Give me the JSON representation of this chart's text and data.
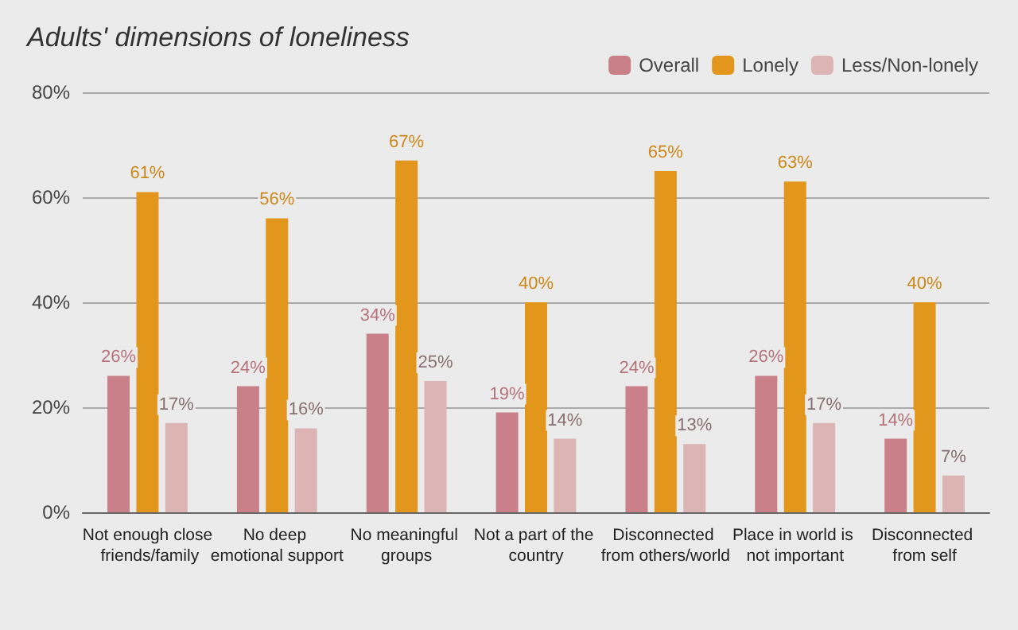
{
  "chart_data": {
    "type": "bar",
    "title": "Adults' dimensions of loneliness",
    "categories": [
      "Not enough close friends/family",
      "No deep emotional support",
      "No meaningful groups",
      "Not a part of the country",
      "Disconnected from others/world",
      "Place in world is not important",
      "Disconnected from self"
    ],
    "series": [
      {
        "name": "Overall",
        "color": "#c98088",
        "values": [
          26,
          24,
          34,
          19,
          24,
          26,
          14
        ],
        "value_labels": [
          "26%",
          "24%",
          "34%",
          "19%",
          "24%",
          "26%",
          "14%"
        ]
      },
      {
        "name": "Lonely",
        "color": "#e2961c",
        "values": [
          61,
          56,
          67,
          40,
          65,
          63,
          40
        ],
        "value_labels": [
          "61%",
          "56%",
          "67%",
          "40%",
          "65%",
          "63%",
          "40%"
        ]
      },
      {
        "name": "Less/Non-lonely",
        "color": "#dcb4b4",
        "values": [
          17,
          16,
          25,
          14,
          13,
          17,
          7
        ],
        "value_labels": [
          "17%",
          "16%",
          "25%",
          "14%",
          "13%",
          "17%",
          "7%"
        ]
      }
    ],
    "ylim": [
      0,
      80
    ],
    "yticks": [
      {
        "value": 0,
        "label": "0%"
      },
      {
        "value": 20,
        "label": "20%"
      },
      {
        "value": 40,
        "label": "40%"
      },
      {
        "value": 60,
        "label": "60%"
      },
      {
        "value": 80,
        "label": "80%"
      }
    ],
    "grid": "y",
    "legend": "top right"
  }
}
